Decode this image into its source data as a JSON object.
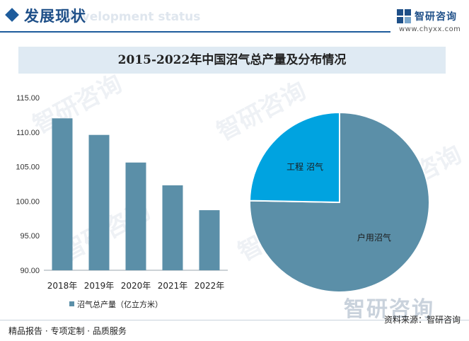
{
  "header": {
    "section_title": "发展现状",
    "section_subtitle": "Development status",
    "logo_name": "智研咨询",
    "logo_url": "www.chyxx.com"
  },
  "watermark": {
    "text": "智研咨询",
    "large_text": "智研咨询"
  },
  "chart_data": [
    {
      "type": "bar",
      "title": "2015-2022年中国沼气总产量及分布情况",
      "categories": [
        "2018年",
        "2019年",
        "2020年",
        "2021年",
        "2022年"
      ],
      "series": [
        {
          "name": "沼气总产量（亿立方米）",
          "values": [
            112.0,
            109.6,
            105.6,
            102.3,
            98.7
          ],
          "color": "#5b8fa8"
        }
      ],
      "ylim": [
        90,
        115
      ],
      "yticks": [
        "90.00",
        "95.00",
        "100.00",
        "105.00",
        "110.00",
        "115.00"
      ],
      "legend_position": "bottom"
    },
    {
      "type": "pie",
      "slices": [
        {
          "label": "户用沼气",
          "value": 75.3,
          "color": "#5b8fa8"
        },
        {
          "label": "工程 沼气",
          "value": 24.7,
          "color": "#00a3e0"
        }
      ]
    }
  ],
  "footer": {
    "left": "精品报告 · 专项定制 · 品质服务",
    "source": "资料来源：智研咨询"
  }
}
